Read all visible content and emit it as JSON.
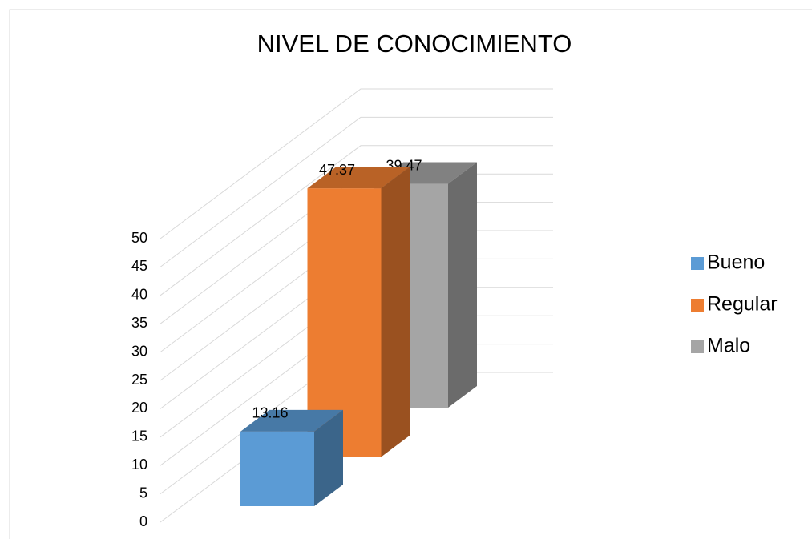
{
  "chart_data": {
    "type": "bar3d",
    "title": "NIVEL DE CONOCIMIENTO",
    "categories": [
      null
    ],
    "series": [
      {
        "name": "Bueno",
        "color": "#5b9bd5",
        "values": [
          13.16
        ]
      },
      {
        "name": "Regular",
        "color": "#ed7d31",
        "values": [
          47.37
        ]
      },
      {
        "name": "Malo",
        "color": "#a5a5a5",
        "values": [
          39.47
        ]
      }
    ],
    "ylim": [
      0,
      50
    ],
    "yticks": [
      0,
      5,
      10,
      15,
      20,
      25,
      30,
      35,
      40,
      45,
      50
    ],
    "grid": true,
    "legend": "right"
  }
}
